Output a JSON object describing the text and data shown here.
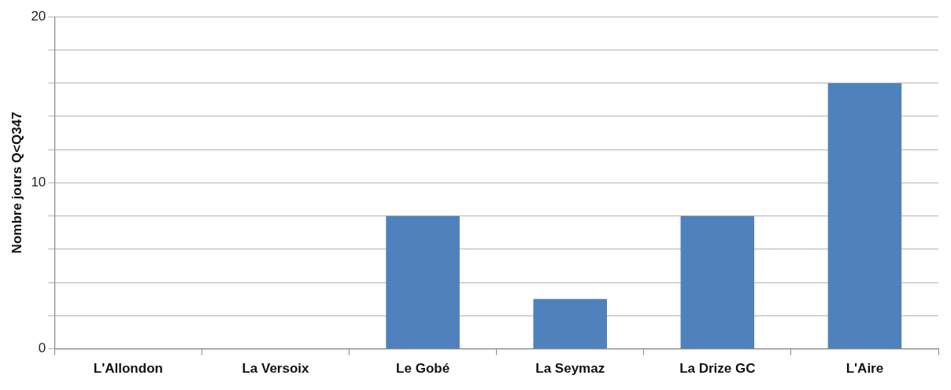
{
  "chart_data": {
    "type": "bar",
    "ylabel": "Nombre jours Q<Q347",
    "categories": [
      "L'Allondon",
      "La Versoix",
      "Le Gobé",
      "La Seymaz",
      "La Drize GC",
      "L'Aire"
    ],
    "values": [
      0,
      0,
      8,
      3,
      8,
      16
    ],
    "color": "#4f81bd",
    "ylim": [
      0,
      20
    ],
    "yticks": [
      0,
      {
        "value": 2,
        "label": null
      },
      {
        "value": 4,
        "label": null
      },
      {
        "value": 6,
        "label": null
      },
      {
        "value": 8,
        "label": null
      },
      10,
      {
        "value": 12,
        "label": null
      },
      {
        "value": 14,
        "label": null
      },
      {
        "value": 16,
        "label": null
      },
      {
        "value": 18,
        "label": null
      },
      20
    ],
    "grid": "y",
    "legend": false
  }
}
